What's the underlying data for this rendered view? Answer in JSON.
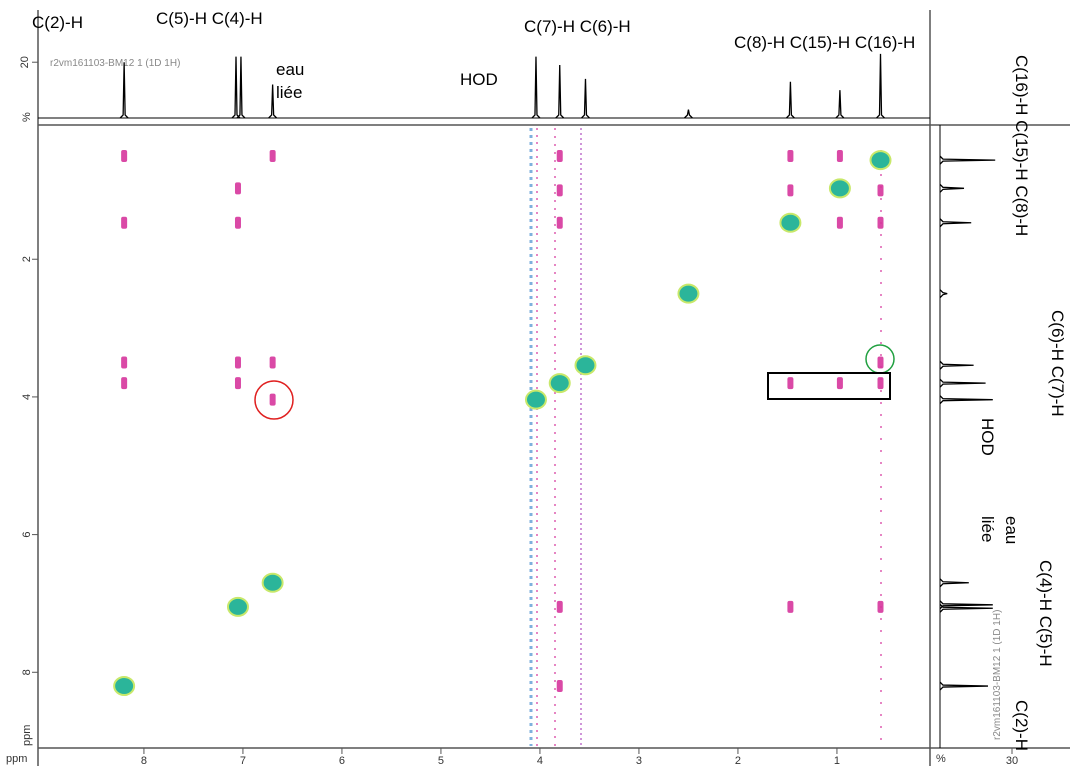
{
  "chart_data": {
    "type": "scatter",
    "x_label": "ppm",
    "y_label": "ppm",
    "xlim": [
      9.07,
      0.06
    ],
    "ylim": [
      0.05,
      9.1
    ],
    "xticks": [
      8,
      7,
      6,
      5,
      4,
      3,
      2,
      1
    ],
    "yticks": [
      2,
      4,
      6,
      8
    ],
    "diagonal_peaks": {
      "color": "#2bb59a",
      "x": [
        8.2,
        7.05,
        6.7,
        4.04,
        3.8,
        3.54,
        2.5,
        1.47,
        0.97,
        0.56
      ],
      "y": [
        8.2,
        7.05,
        6.7,
        4.04,
        3.8,
        3.54,
        2.5,
        1.47,
        0.97,
        0.56
      ]
    },
    "cross_peaks": {
      "color": "#d6359c",
      "x": [
        8.2,
        8.2,
        8.2,
        8.2,
        7.05,
        7.05,
        7.05,
        7.05,
        6.7,
        6.7,
        6.7,
        3.8,
        3.8,
        3.8,
        3.8,
        3.8,
        1.47,
        1.47,
        1.47,
        1.47,
        0.97,
        0.97,
        0.97,
        0.56,
        0.56,
        0.56,
        0.56,
        0.56
      ],
      "y": [
        0.5,
        1.47,
        3.5,
        3.8,
        0.97,
        1.47,
        3.5,
        3.8,
        0.5,
        3.5,
        4.04,
        0.5,
        1.0,
        1.47,
        7.05,
        8.2,
        0.5,
        1.0,
        3.8,
        7.05,
        0.5,
        1.47,
        3.8,
        1.0,
        1.47,
        3.5,
        3.8,
        7.05
      ]
    },
    "projection": {
      "name": "r2vm161103-BM12 1 (1D 1H)",
      "top_ylim": [
        0,
        38
      ],
      "top_yticks": [
        20
      ],
      "top_y_label": "%",
      "right_xlim": [
        0,
        40
      ],
      "right_xticks": [
        30
      ],
      "right_x_label": "%",
      "peaks": {
        "ppm": [
          8.2,
          7.07,
          7.02,
          6.7,
          4.04,
          3.8,
          3.54,
          2.5,
          1.47,
          0.97,
          0.56
        ],
        "height": [
          20,
          22,
          22,
          12,
          22,
          19,
          14,
          3,
          13,
          10,
          23
        ]
      }
    },
    "top_labels": [
      "C(2)-H",
      "C(5)-H C(4)-H",
      "eau",
      "liée",
      "HOD",
      "C(7)-H C(6)-H",
      "C(8)-H C(15)-H C(16)-H"
    ],
    "right_labels": [
      "C(16)-H C(15)-H C(8)-H",
      "C(6)-H C(7)-H",
      "HOD",
      "eau",
      "liée",
      "C(4)-H C(5)-H",
      "C(2)-H"
    ]
  }
}
